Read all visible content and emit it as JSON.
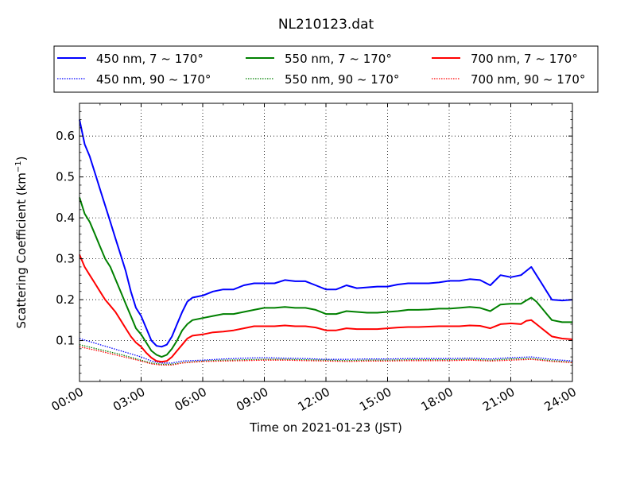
{
  "chart_data": {
    "type": "line",
    "title": "NL210123.dat",
    "xlabel": "Time on 2021-01-23 (JST)",
    "ylabel_main": "Scattering Coefficient (km",
    "ylabel_exp": "−1",
    "ylabel_close": ")",
    "x_ticks": [
      "00:00",
      "03:00",
      "06:00",
      "09:00",
      "12:00",
      "15:00",
      "18:00",
      "21:00",
      "24:00"
    ],
    "x_tick_hours": [
      0,
      3,
      6,
      9,
      12,
      15,
      18,
      21,
      24
    ],
    "xlim": [
      0,
      24
    ],
    "y_ticks": [
      "0.1",
      "0.2",
      "0.3",
      "0.4",
      "0.5",
      "0.6"
    ],
    "y_tick_values": [
      0.1,
      0.2,
      0.3,
      0.4,
      0.5,
      0.6
    ],
    "ylim": [
      0.0,
      0.68
    ],
    "grid": true,
    "legend_placement": "top, above plot, three columns",
    "series": [
      {
        "name": "450 nm, 7 ~ 170°",
        "color": "#0000ff",
        "style": "solid",
        "x": [
          0,
          0.25,
          0.5,
          0.75,
          1.0,
          1.25,
          1.5,
          1.75,
          2.0,
          2.25,
          2.5,
          2.75,
          3.0,
          3.25,
          3.5,
          3.75,
          4.0,
          4.25,
          4.5,
          4.75,
          5.0,
          5.25,
          5.5,
          6.0,
          6.5,
          7.0,
          7.5,
          8.0,
          8.5,
          9.0,
          9.5,
          10.0,
          10.5,
          11.0,
          11.5,
          12.0,
          12.5,
          13.0,
          13.5,
          14.0,
          14.5,
          15.0,
          15.5,
          16.0,
          16.5,
          17.0,
          17.5,
          18.0,
          18.5,
          19.0,
          19.5,
          20.0,
          20.5,
          21.0,
          21.5,
          21.75,
          22.0,
          22.25,
          22.5,
          22.75,
          23.0,
          23.5,
          24.0
        ],
        "y": [
          0.64,
          0.58,
          0.55,
          0.51,
          0.47,
          0.43,
          0.39,
          0.35,
          0.31,
          0.27,
          0.22,
          0.18,
          0.16,
          0.13,
          0.1,
          0.087,
          0.085,
          0.09,
          0.11,
          0.14,
          0.17,
          0.195,
          0.205,
          0.21,
          0.22,
          0.225,
          0.225,
          0.235,
          0.24,
          0.24,
          0.24,
          0.248,
          0.245,
          0.245,
          0.235,
          0.225,
          0.225,
          0.235,
          0.228,
          0.23,
          0.232,
          0.232,
          0.237,
          0.24,
          0.24,
          0.24,
          0.242,
          0.246,
          0.246,
          0.25,
          0.248,
          0.235,
          0.26,
          0.255,
          0.26,
          0.27,
          0.28,
          0.26,
          0.24,
          0.22,
          0.2,
          0.198,
          0.2
        ]
      },
      {
        "name": "450 nm, 90 ~ 170°",
        "color": "#0000ff",
        "style": "dotted",
        "x": [
          0,
          1,
          2,
          3,
          3.5,
          4,
          4.5,
          5,
          6,
          7,
          8,
          9,
          10,
          11,
          12,
          13,
          14,
          15,
          16,
          17,
          18,
          19,
          20,
          21,
          22,
          23,
          24
        ],
        "y": [
          0.105,
          0.09,
          0.075,
          0.06,
          0.05,
          0.045,
          0.045,
          0.05,
          0.052,
          0.055,
          0.057,
          0.058,
          0.057,
          0.056,
          0.054,
          0.054,
          0.055,
          0.055,
          0.056,
          0.056,
          0.056,
          0.057,
          0.055,
          0.058,
          0.06,
          0.054,
          0.05
        ]
      },
      {
        "name": "550 nm, 7 ~ 170°",
        "color": "#008000",
        "style": "solid",
        "x": [
          0,
          0.25,
          0.5,
          0.75,
          1.0,
          1.25,
          1.5,
          1.75,
          2.0,
          2.25,
          2.5,
          2.75,
          3.0,
          3.25,
          3.5,
          3.75,
          4.0,
          4.25,
          4.5,
          4.75,
          5.0,
          5.25,
          5.5,
          6.0,
          6.5,
          7.0,
          7.5,
          8.0,
          8.5,
          9.0,
          9.5,
          10.0,
          10.5,
          11.0,
          11.5,
          12.0,
          12.5,
          13.0,
          13.5,
          14.0,
          14.5,
          15.0,
          15.5,
          16.0,
          16.5,
          17.0,
          17.5,
          18.0,
          18.5,
          19.0,
          19.5,
          20.0,
          20.5,
          21.0,
          21.5,
          21.75,
          22.0,
          22.25,
          22.5,
          22.75,
          23.0,
          23.5,
          24.0
        ],
        "y": [
          0.45,
          0.41,
          0.39,
          0.36,
          0.33,
          0.3,
          0.28,
          0.25,
          0.22,
          0.19,
          0.16,
          0.13,
          0.115,
          0.095,
          0.075,
          0.065,
          0.06,
          0.065,
          0.08,
          0.1,
          0.125,
          0.14,
          0.15,
          0.155,
          0.16,
          0.165,
          0.165,
          0.17,
          0.175,
          0.18,
          0.18,
          0.182,
          0.18,
          0.18,
          0.175,
          0.165,
          0.165,
          0.172,
          0.17,
          0.168,
          0.168,
          0.17,
          0.172,
          0.175,
          0.175,
          0.176,
          0.178,
          0.178,
          0.18,
          0.182,
          0.18,
          0.172,
          0.188,
          0.19,
          0.19,
          0.198,
          0.205,
          0.195,
          0.18,
          0.165,
          0.15,
          0.145,
          0.145
        ]
      },
      {
        "name": "550 nm, 90 ~ 170°",
        "color": "#008000",
        "style": "dotted",
        "x": [
          0,
          1,
          2,
          3,
          3.5,
          4,
          4.5,
          5,
          6,
          7,
          8,
          9,
          10,
          11,
          12,
          13,
          14,
          15,
          16,
          17,
          18,
          19,
          20,
          21,
          22,
          23,
          24
        ],
        "y": [
          0.09,
          0.078,
          0.066,
          0.052,
          0.045,
          0.042,
          0.042,
          0.046,
          0.05,
          0.052,
          0.053,
          0.054,
          0.054,
          0.053,
          0.052,
          0.051,
          0.052,
          0.052,
          0.053,
          0.053,
          0.053,
          0.054,
          0.052,
          0.055,
          0.056,
          0.051,
          0.047
        ]
      },
      {
        "name": "700 nm, 7 ~ 170°",
        "color": "#ff0000",
        "style": "solid",
        "x": [
          0,
          0.25,
          0.5,
          0.75,
          1.0,
          1.25,
          1.5,
          1.75,
          2.0,
          2.25,
          2.5,
          2.75,
          3.0,
          3.25,
          3.5,
          3.75,
          4.0,
          4.25,
          4.5,
          4.75,
          5.0,
          5.25,
          5.5,
          6.0,
          6.5,
          7.0,
          7.5,
          8.0,
          8.5,
          9.0,
          9.5,
          10.0,
          10.5,
          11.0,
          11.5,
          12.0,
          12.5,
          13.0,
          13.5,
          14.0,
          14.5,
          15.0,
          15.5,
          16.0,
          16.5,
          17.0,
          17.5,
          18.0,
          18.5,
          19.0,
          19.5,
          20.0,
          20.5,
          21.0,
          21.5,
          21.75,
          22.0,
          22.25,
          22.5,
          22.75,
          23.0,
          23.5,
          24.0
        ],
        "y": [
          0.31,
          0.28,
          0.26,
          0.24,
          0.22,
          0.2,
          0.185,
          0.17,
          0.15,
          0.13,
          0.11,
          0.095,
          0.085,
          0.07,
          0.058,
          0.05,
          0.048,
          0.05,
          0.06,
          0.075,
          0.09,
          0.105,
          0.112,
          0.115,
          0.12,
          0.122,
          0.125,
          0.13,
          0.135,
          0.135,
          0.135,
          0.137,
          0.135,
          0.135,
          0.132,
          0.125,
          0.125,
          0.13,
          0.128,
          0.128,
          0.128,
          0.13,
          0.132,
          0.133,
          0.133,
          0.134,
          0.135,
          0.135,
          0.135,
          0.137,
          0.136,
          0.13,
          0.14,
          0.142,
          0.14,
          0.148,
          0.15,
          0.14,
          0.13,
          0.12,
          0.11,
          0.105,
          0.103
        ]
      },
      {
        "name": "700 nm, 90 ~ 170°",
        "color": "#ff0000",
        "style": "dotted",
        "x": [
          0,
          1,
          2,
          3,
          3.5,
          4,
          4.5,
          5,
          6,
          7,
          8,
          9,
          10,
          11,
          12,
          13,
          14,
          15,
          16,
          17,
          18,
          19,
          20,
          21,
          22,
          23,
          24
        ],
        "y": [
          0.085,
          0.074,
          0.062,
          0.05,
          0.043,
          0.04,
          0.04,
          0.045,
          0.049,
          0.05,
          0.051,
          0.052,
          0.052,
          0.051,
          0.05,
          0.049,
          0.05,
          0.05,
          0.051,
          0.051,
          0.051,
          0.052,
          0.05,
          0.052,
          0.054,
          0.049,
          0.046
        ]
      }
    ]
  }
}
